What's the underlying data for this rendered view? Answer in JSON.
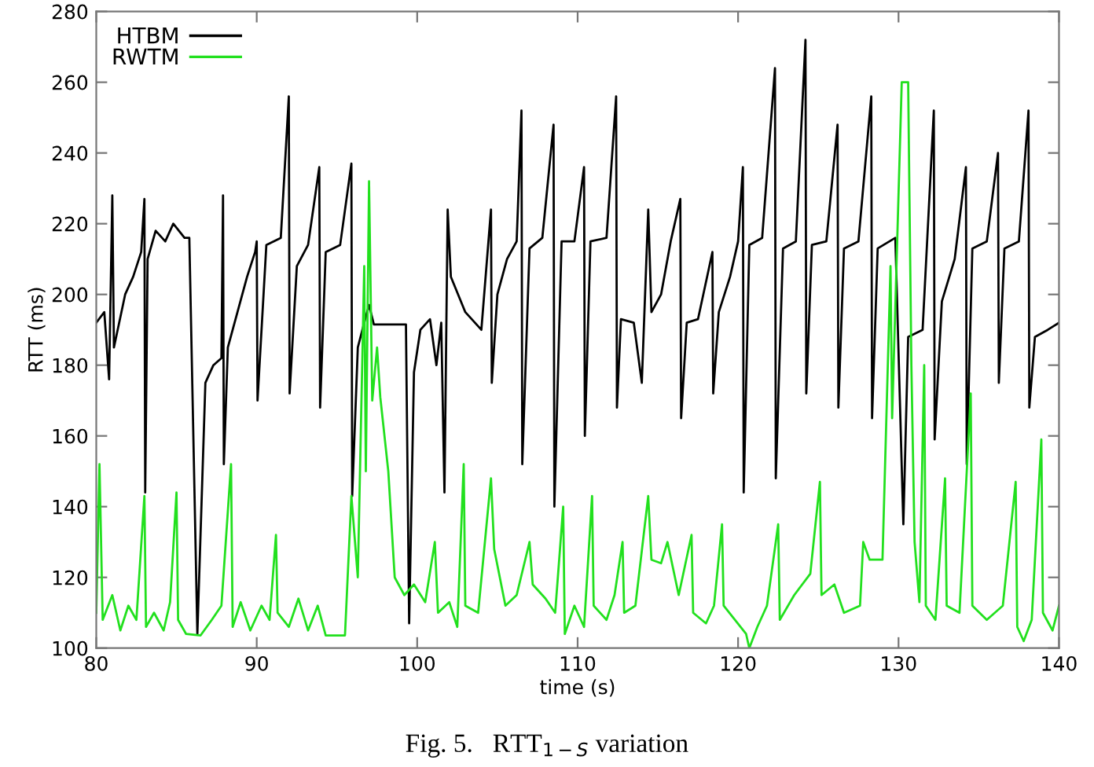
{
  "chart_data": {
    "type": "line",
    "xlabel": "time (s)",
    "ylabel": "RTT (ms)",
    "xlim": [
      80,
      140
    ],
    "ylim": [
      100,
      280
    ],
    "xticks": [
      80,
      90,
      100,
      110,
      120,
      130,
      140
    ],
    "yticks": [
      100,
      120,
      140,
      160,
      180,
      200,
      220,
      240,
      260,
      280
    ],
    "grid": false,
    "legend": "top left",
    "line_style": "solid",
    "marker": "none",
    "annotations": [
      "Fig. 5.   RTT$_{1−S}$ variation"
    ],
    "series": [
      {
        "name": "HTBM",
        "color": "#000000",
        "x": [
          80,
          80.5,
          80.8,
          81.0,
          81.1,
          81.8,
          82.3,
          82.8,
          83.0,
          83.05,
          83.2,
          83.7,
          84.3,
          84.8,
          85.5,
          85.8,
          86.3,
          86.8,
          87.3,
          87.8,
          87.9,
          87.95,
          88.2,
          88.8,
          89.4,
          89.9,
          90.0,
          90.05,
          90.6,
          91.5,
          92.0,
          92.05,
          92.5,
          93.2,
          93.9,
          93.95,
          94.3,
          95.2,
          95.9,
          95.95,
          96.3,
          96.7,
          97.0,
          97.3,
          99.3,
          99.5,
          99.8,
          100.2,
          100.8,
          101.2,
          101.5,
          101.7,
          101.9,
          102.1,
          103.0,
          104.0,
          104.6,
          104.65,
          105.0,
          105.6,
          106.2,
          106.5,
          106.55,
          107.0,
          107.8,
          108.5,
          108.55,
          109.0,
          109.8,
          110.4,
          110.45,
          110.8,
          111.8,
          112.4,
          112.45,
          112.7,
          113.5,
          114.0,
          114.4,
          114.6,
          115.2,
          115.8,
          116.4,
          116.45,
          116.8,
          117.5,
          118.4,
          118.45,
          118.8,
          119.5,
          120.0,
          120.3,
          120.35,
          120.7,
          121.5,
          122.3,
          122.35,
          122.8,
          123.6,
          124.2,
          124.25,
          124.6,
          125.5,
          126.2,
          126.25,
          126.6,
          127.5,
          128.3,
          128.35,
          128.7,
          129.8,
          130.3,
          130.6,
          131.5,
          132.2,
          132.25,
          132.7,
          133.5,
          134.2,
          134.25,
          134.6,
          135.5,
          136.2,
          136.25,
          136.6,
          137.5,
          138.1,
          138.15,
          138.5,
          139.3,
          140
        ],
        "values": [
          192,
          195,
          176,
          228,
          185,
          200,
          205,
          212,
          227,
          144,
          210,
          218,
          215,
          220,
          216,
          216,
          104,
          175,
          180,
          182,
          228,
          152,
          185,
          195,
          205,
          212,
          215,
          170,
          214,
          216,
          256,
          172,
          208,
          214,
          236,
          168,
          212,
          214,
          237,
          143,
          185,
          192,
          197,
          191.5,
          191.5,
          107,
          178,
          190,
          193,
          180,
          192,
          144,
          224,
          205,
          195,
          190,
          224,
          175,
          200,
          210,
          215,
          252,
          152,
          213,
          216,
          248,
          140,
          215,
          215,
          236,
          160,
          215,
          216,
          256,
          168,
          193,
          192,
          175,
          224,
          195,
          200,
          215,
          227,
          165,
          192,
          193,
          212,
          172,
          195,
          205,
          215,
          236,
          144,
          214,
          216,
          264,
          148,
          213,
          215,
          272,
          172,
          214,
          215,
          248,
          168,
          213,
          215,
          256,
          165,
          213,
          216,
          135,
          188,
          190,
          252,
          159,
          198,
          210,
          236,
          152,
          213,
          215,
          240,
          175,
          213,
          215,
          252,
          168,
          188,
          190,
          192
        ]
      },
      {
        "name": "RWTM",
        "color": "#22e01e",
        "x": [
          80,
          80.2,
          80.4,
          81.0,
          81.5,
          82.0,
          82.5,
          83.0,
          83.1,
          83.6,
          84.2,
          84.6,
          85.0,
          85.1,
          85.6,
          86.5,
          87.2,
          87.8,
          88.4,
          88.5,
          89.0,
          89.6,
          90.3,
          90.8,
          91.2,
          91.3,
          92.0,
          92.6,
          93.2,
          93.8,
          94.3,
          95.5,
          95.9,
          96.3,
          96.7,
          96.8,
          97.0,
          97.2,
          97.5,
          97.7,
          98.2,
          98.6,
          99.2,
          99.8,
          100.5,
          101.1,
          101.3,
          102.0,
          102.5,
          102.9,
          103.0,
          103.8,
          104.6,
          104.8,
          105.5,
          106.2,
          107.0,
          107.2,
          108.0,
          108.6,
          109.1,
          109.2,
          109.8,
          110.4,
          110.9,
          111.0,
          111.8,
          112.3,
          112.8,
          112.9,
          113.6,
          114.4,
          114.6,
          115.2,
          115.6,
          116.3,
          117.1,
          117.2,
          118.0,
          118.5,
          119.0,
          119.1,
          119.8,
          120.5,
          120.7,
          121.2,
          121.8,
          122.5,
          122.6,
          123.5,
          124.5,
          125.1,
          125.2,
          126.0,
          126.6,
          127.6,
          127.8,
          128.2,
          129.0,
          129.5,
          129.6,
          130.2,
          130.6,
          130.8,
          131.0,
          131.3,
          131.6,
          131.7,
          132.3,
          132.9,
          133.0,
          133.8,
          134.5,
          134.6,
          135.5,
          136.5,
          137.3,
          137.4,
          137.8,
          138.3,
          138.9,
          139.0,
          139.6,
          140
        ],
        "values": [
          110,
          152,
          108,
          115,
          105,
          112,
          108,
          143,
          106,
          110,
          105,
          113,
          144,
          108,
          104,
          103.6,
          108,
          112,
          152,
          106,
          113,
          105,
          112,
          108,
          132,
          110,
          106,
          114,
          105,
          112,
          103.6,
          103.6,
          143,
          120,
          208,
          150,
          232,
          170,
          185,
          171,
          150,
          120,
          115,
          118,
          113,
          130,
          110,
          113,
          106,
          152,
          112,
          110,
          148,
          128,
          112,
          115,
          130,
          118,
          114,
          110,
          140,
          104,
          112,
          106,
          143,
          112,
          108,
          115,
          130,
          110,
          112,
          143,
          125,
          124,
          130,
          115,
          132,
          110,
          107,
          112,
          135,
          112,
          108,
          104,
          100,
          106,
          112,
          135,
          108,
          115,
          121,
          147,
          115,
          118,
          110,
          112,
          130,
          125,
          125,
          208,
          165,
          260,
          260,
          180,
          130,
          113,
          180,
          112,
          108,
          148,
          112,
          110,
          172,
          112,
          108,
          112,
          147,
          106,
          102,
          108,
          159,
          110,
          105,
          112
        ]
      }
    ]
  }
}
